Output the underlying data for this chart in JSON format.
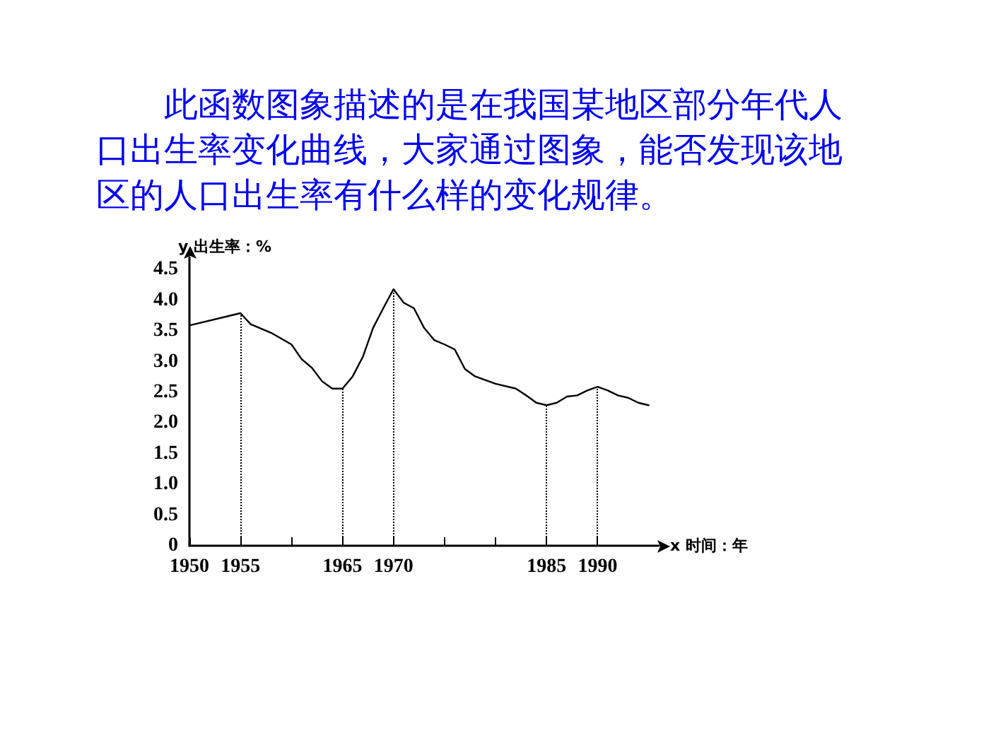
{
  "chart_data": {
    "type": "line",
    "title": "此函数图象描述的是在我国某地区部分年代人口出生率变化曲线，大家通过图象，能否发现该地区的人口出生率有什么样的变化规律。",
    "xlabel": "x 时间：年",
    "ylabel": "y 出生率：%",
    "x": [
      1950,
      1955,
      1956,
      1958,
      1960,
      1961,
      1962,
      1963,
      1964,
      1965,
      1966,
      1967,
      1968,
      1969,
      1970,
      1971,
      1972,
      1973,
      1974,
      1975,
      1976,
      1977,
      1978,
      1980,
      1982,
      1983,
      1984,
      1985,
      1986,
      1987,
      1988,
      1989,
      1990,
      1991,
      1992,
      1993,
      1994,
      1995
    ],
    "series": [
      {
        "color": "#000000",
        "values": [
          3.59,
          3.79,
          3.61,
          3.47,
          3.28,
          3.04,
          2.9,
          2.68,
          2.56,
          2.56,
          2.76,
          3.08,
          3.55,
          3.87,
          4.18,
          3.96,
          3.87,
          3.55,
          3.35,
          3.28,
          3.2,
          2.88,
          2.76,
          2.64,
          2.56,
          2.45,
          2.33,
          2.29,
          2.33,
          2.43,
          2.45,
          2.53,
          2.59,
          2.53,
          2.45,
          2.41,
          2.33,
          2.29
        ]
      }
    ],
    "xlim": [
      1950,
      1996
    ],
    "ylim": [
      0,
      4.7
    ],
    "xticks": [
      1950,
      1955,
      {
        "value": 1960,
        "label": null
      },
      1965,
      1970,
      {
        "value": 1975,
        "label": null
      },
      {
        "value": 1980,
        "label": null
      },
      1985,
      1990
    ],
    "yticks": [
      {
        "value": 0,
        "label": "0"
      },
      {
        "value": 0.5,
        "label": "0.5"
      },
      {
        "value": 1,
        "label": "1.0"
      },
      {
        "value": 1.5,
        "label": "1.5"
      },
      {
        "value": 2,
        "label": "2.0"
      },
      {
        "value": 2.5,
        "label": "2.5"
      },
      {
        "value": 3,
        "label": "3.0"
      },
      {
        "value": 3.5,
        "label": "3.5"
      },
      {
        "value": 4,
        "label": "4.0"
      },
      {
        "value": 4.5,
        "label": "4.5"
      }
    ],
    "ref_lines": [
      {
        "axis": "x",
        "value": 1955,
        "line_style": "dotted"
      },
      {
        "axis": "x",
        "value": 1965,
        "line_style": "dotted"
      },
      {
        "axis": "x",
        "value": 1970,
        "line_style": "dotted"
      },
      {
        "axis": "x",
        "value": 1985,
        "line_style": "dotted"
      },
      {
        "axis": "x",
        "value": 1990,
        "line_style": "dotted"
      }
    ],
    "grid": false,
    "marker": "none",
    "line_style": "solid"
  }
}
